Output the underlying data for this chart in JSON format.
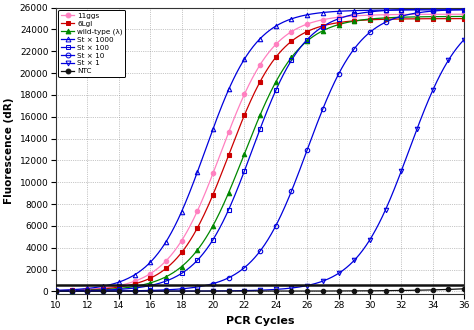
{
  "title": "",
  "xlabel": "PCR Cycles",
  "ylabel": "Fluorescence (dR)",
  "xlim": [
    10,
    36
  ],
  "ylim": [
    -200,
    26000
  ],
  "xticks": [
    10,
    12,
    14,
    16,
    18,
    20,
    22,
    24,
    26,
    28,
    30,
    32,
    34,
    36
  ],
  "yticks": [
    0,
    2000,
    4000,
    6000,
    8000,
    10000,
    12000,
    14000,
    16000,
    18000,
    20000,
    22000,
    24000,
    26000
  ],
  "background_color": "#ffffff",
  "series": [
    {
      "label": "11ggs",
      "color": "#ff80c0",
      "marker": "o",
      "marker_fill": "#ff80c0",
      "midpoint": 20.5,
      "plateau": 25400,
      "steepness": 0.6
    },
    {
      "label": "6Lgl",
      "color": "#cc0000",
      "marker": "s",
      "marker_fill": "#cc0000",
      "midpoint": 21.0,
      "plateau": 25000,
      "steepness": 0.6
    },
    {
      "label": "wild-type (λ)",
      "color": "#008800",
      "marker": "^",
      "marker_fill": "#008800",
      "midpoint": 22.0,
      "plateau": 25200,
      "steepness": 0.58
    },
    {
      "label": "St × 1000",
      "color": "#0000dd",
      "marker": "^",
      "marker_fill": "none",
      "midpoint": 19.5,
      "plateau": 25800,
      "steepness": 0.62
    },
    {
      "label": "St × 100",
      "color": "#0000dd",
      "marker": "s",
      "marker_fill": "none",
      "midpoint": 22.5,
      "plateau": 25900,
      "steepness": 0.6
    },
    {
      "label": "St × 10",
      "color": "#0000dd",
      "marker": "o",
      "marker_fill": "none",
      "midpoint": 26.0,
      "plateau": 25900,
      "steepness": 0.6
    },
    {
      "label": "St × 1",
      "color": "#0000dd",
      "marker": "v",
      "marker_fill": "none",
      "midpoint": 32.5,
      "plateau": 25900,
      "steepness": 0.6
    },
    {
      "label": "NTC",
      "color": "#111111",
      "marker": "o",
      "marker_fill": "#111111",
      "midpoint": 42.0,
      "plateau": 2000,
      "steepness": 0.35
    }
  ],
  "threshold_y": 580,
  "threshold_color": "#111111",
  "threshold_lw": 1.8
}
